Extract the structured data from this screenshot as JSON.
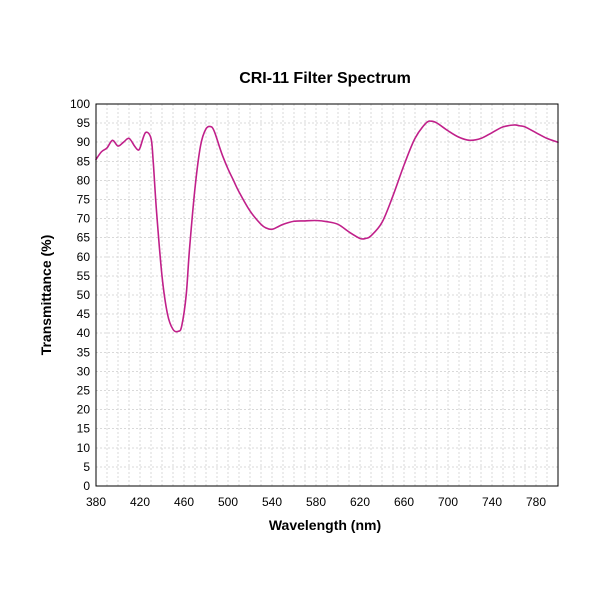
{
  "chart_data": {
    "type": "line",
    "title": "CRI-11 Filter Spectrum",
    "xlabel": "Wavelength (nm)",
    "ylabel": "Transmittance (%)",
    "xlim": [
      380,
      800
    ],
    "ylim": [
      0,
      100
    ],
    "x_ticks": [
      380,
      420,
      460,
      500,
      540,
      580,
      620,
      660,
      700,
      740,
      780
    ],
    "y_ticks": [
      0,
      5,
      10,
      15,
      20,
      25,
      30,
      35,
      40,
      45,
      50,
      55,
      60,
      65,
      70,
      75,
      80,
      85,
      90,
      95,
      100
    ],
    "grid": true,
    "line_color": "#c0208a",
    "series": [
      {
        "x": [
          380,
          385,
          390,
          395,
          400,
          405,
          410,
          415,
          418,
          420,
          425,
          430,
          432,
          435,
          440,
          445,
          450,
          455,
          458,
          462,
          465,
          470,
          475,
          480,
          485,
          488,
          492,
          495,
          500,
          505,
          510,
          520,
          530,
          535,
          540,
          545,
          550,
          560,
          570,
          580,
          590,
          600,
          610,
          620,
          625,
          630,
          640,
          650,
          660,
          670,
          680,
          685,
          690,
          700,
          710,
          720,
          730,
          740,
          750,
          760,
          765,
          770,
          780,
          790,
          800
        ],
        "y": [
          85.5,
          87.5,
          88.5,
          90.5,
          89,
          90,
          91,
          89,
          88,
          88.5,
          92.5,
          91,
          85,
          72,
          55,
          45,
          41,
          40.5,
          42,
          50,
          62,
          78,
          89,
          93.5,
          94,
          92.5,
          89,
          86.5,
          83,
          80,
          77,
          72,
          68.5,
          67.5,
          67.2,
          67.8,
          68.5,
          69.3,
          69.4,
          69.5,
          69.2,
          68.5,
          66.5,
          64.8,
          64.8,
          65.5,
          69,
          76,
          84,
          91,
          95,
          95.5,
          95,
          93,
          91.3,
          90.5,
          91,
          92.5,
          94,
          94.5,
          94.3,
          94,
          92.5,
          91,
          90
        ]
      }
    ]
  }
}
